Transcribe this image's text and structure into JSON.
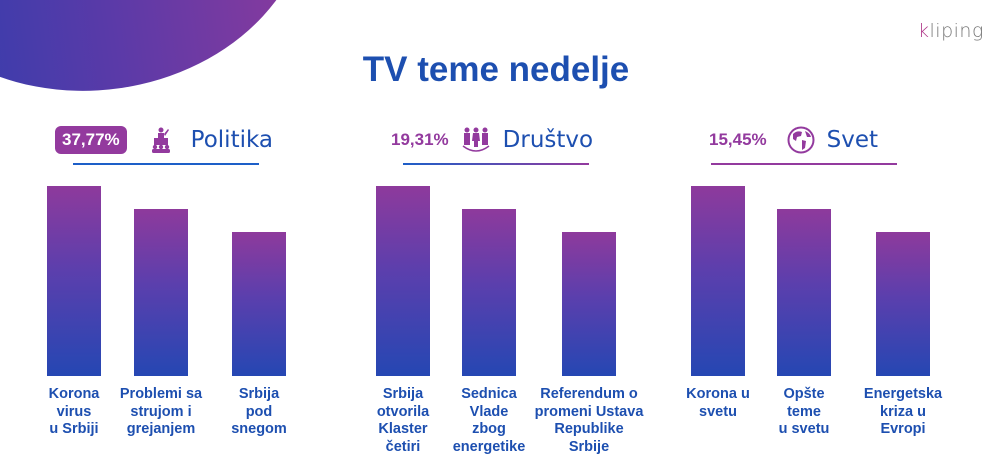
{
  "logo": "kliping",
  "title": "TV teme nedelje",
  "colors": {
    "accent_purple": "#933a9e",
    "accent_blue": "#1d4fb0"
  },
  "groups": [
    {
      "percent": "37,77%",
      "category": "Politika",
      "icon": "podium-speaker-icon",
      "bars": [
        {
          "label": "Korona\nvirus\nu Srbiji",
          "relative_value": 1.0
        },
        {
          "label": "Problemi sa\nstrujom i\ngrejanjem",
          "relative_value": 0.88
        },
        {
          "label": "Srbija\npod\nsnegom",
          "relative_value": 0.76
        }
      ]
    },
    {
      "percent": "19,31%",
      "category": "Društvo",
      "icon": "people-group-icon",
      "bars": [
        {
          "label": "Srbija\notvorila\nKlaster\nčetiri",
          "relative_value": 1.0
        },
        {
          "label": "Sednica\nVlade\nzbog\nenergetike",
          "relative_value": 0.88
        },
        {
          "label": "Referendum o\npromeni Ustava\nRepublike\nSrbije",
          "relative_value": 0.76
        }
      ]
    },
    {
      "percent": "15,45%",
      "category": "Svet",
      "icon": "globe-icon",
      "bars": [
        {
          "label": "Korona u\nsvetu",
          "relative_value": 1.0
        },
        {
          "label": "Opšte\nteme\nu svetu",
          "relative_value": 0.88
        },
        {
          "label": "Energetska\nkriza u\nEvropi",
          "relative_value": 0.76
        }
      ]
    }
  ]
}
